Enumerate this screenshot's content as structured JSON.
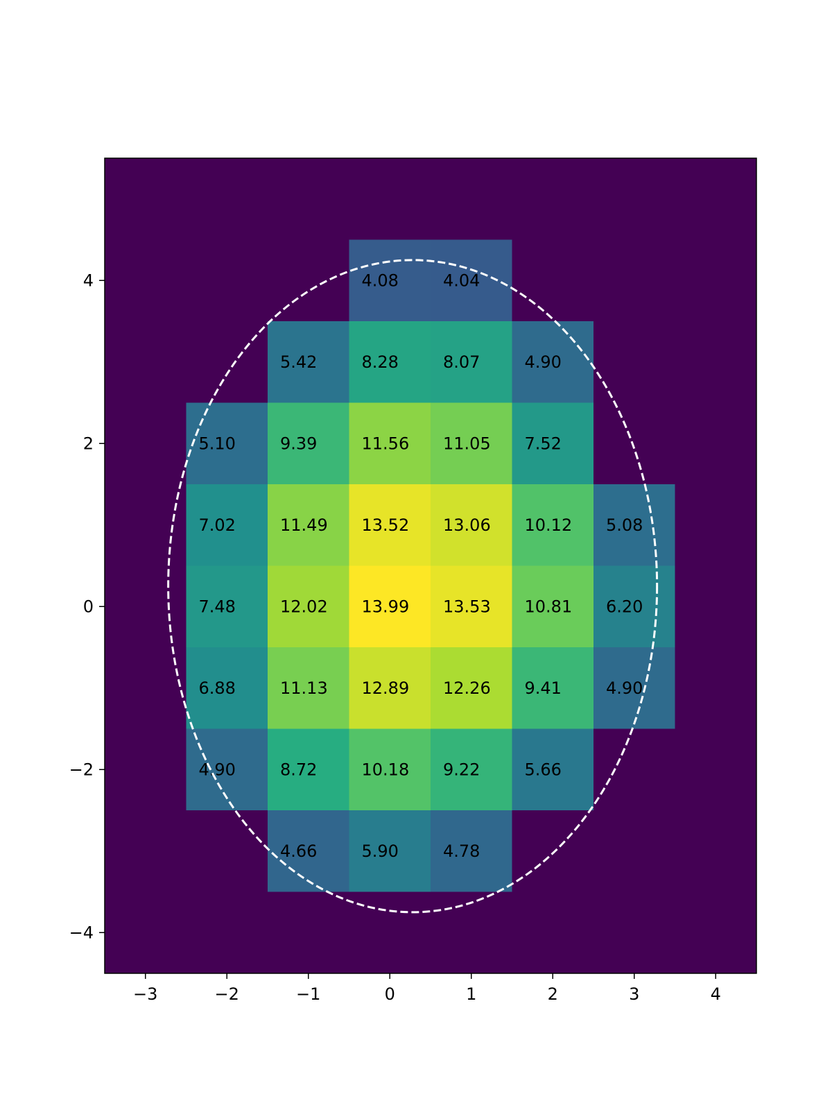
{
  "chart_data": {
    "type": "heatmap",
    "title": "",
    "xlabel": "",
    "ylabel": "",
    "xlim": [
      -3.5,
      4.5
    ],
    "ylim": [
      -4.5,
      5.5
    ],
    "x_ticks": [
      {
        "value": -3,
        "label": "−3"
      },
      {
        "value": -2,
        "label": "−2"
      },
      {
        "value": -1,
        "label": "−1"
      },
      {
        "value": 0,
        "label": "0"
      },
      {
        "value": 1,
        "label": "1"
      },
      {
        "value": 2,
        "label": "2"
      },
      {
        "value": 3,
        "label": "3"
      },
      {
        "value": 4,
        "label": "4"
      }
    ],
    "y_ticks": [
      {
        "value": -4,
        "label": "−4"
      },
      {
        "value": -2,
        "label": "−2"
      },
      {
        "value": 0,
        "label": "0"
      },
      {
        "value": 2,
        "label": "2"
      },
      {
        "value": 4,
        "label": "4"
      }
    ],
    "colormap": "viridis",
    "value_range": [
      0,
      13.99
    ],
    "background_value": 0,
    "cells": [
      {
        "x": 0,
        "y": 4,
        "value": 4.08,
        "label": "4.08"
      },
      {
        "x": 1,
        "y": 4,
        "value": 4.04,
        "label": "4.04"
      },
      {
        "x": -1,
        "y": 3,
        "value": 5.42,
        "label": "5.42"
      },
      {
        "x": 0,
        "y": 3,
        "value": 8.28,
        "label": "8.28"
      },
      {
        "x": 1,
        "y": 3,
        "value": 8.07,
        "label": "8.07"
      },
      {
        "x": 2,
        "y": 3,
        "value": 4.9,
        "label": "4.90"
      },
      {
        "x": -2,
        "y": 2,
        "value": 5.1,
        "label": "5.10"
      },
      {
        "x": -1,
        "y": 2,
        "value": 9.39,
        "label": "9.39"
      },
      {
        "x": 0,
        "y": 2,
        "value": 11.56,
        "label": "11.56"
      },
      {
        "x": 1,
        "y": 2,
        "value": 11.05,
        "label": "11.05"
      },
      {
        "x": 2,
        "y": 2,
        "value": 7.52,
        "label": "7.52"
      },
      {
        "x": -2,
        "y": 1,
        "value": 7.02,
        "label": "7.02"
      },
      {
        "x": -1,
        "y": 1,
        "value": 11.49,
        "label": "11.49"
      },
      {
        "x": 0,
        "y": 1,
        "value": 13.52,
        "label": "13.52"
      },
      {
        "x": 1,
        "y": 1,
        "value": 13.06,
        "label": "13.06"
      },
      {
        "x": 2,
        "y": 1,
        "value": 10.12,
        "label": "10.12"
      },
      {
        "x": 3,
        "y": 1,
        "value": 5.08,
        "label": "5.08"
      },
      {
        "x": -2,
        "y": 0,
        "value": 7.48,
        "label": "7.48"
      },
      {
        "x": -1,
        "y": 0,
        "value": 12.02,
        "label": "12.02"
      },
      {
        "x": 0,
        "y": 0,
        "value": 13.99,
        "label": "13.99"
      },
      {
        "x": 1,
        "y": 0,
        "value": 13.53,
        "label": "13.53"
      },
      {
        "x": 2,
        "y": 0,
        "value": 10.81,
        "label": "10.81"
      },
      {
        "x": 3,
        "y": 0,
        "value": 6.2,
        "label": "6.20"
      },
      {
        "x": -2,
        "y": -1,
        "value": 6.88,
        "label": "6.88"
      },
      {
        "x": -1,
        "y": -1,
        "value": 11.13,
        "label": "11.13"
      },
      {
        "x": 0,
        "y": -1,
        "value": 12.89,
        "label": "12.89"
      },
      {
        "x": 1,
        "y": -1,
        "value": 12.26,
        "label": "12.26"
      },
      {
        "x": 2,
        "y": -1,
        "value": 9.41,
        "label": "9.41"
      },
      {
        "x": 3,
        "y": -1,
        "value": 4.9,
        "label": "4.90"
      },
      {
        "x": -2,
        "y": -2,
        "value": 4.9,
        "label": "4.90"
      },
      {
        "x": -1,
        "y": -2,
        "value": 8.72,
        "label": "8.72"
      },
      {
        "x": 0,
        "y": -2,
        "value": 10.18,
        "label": "10.18"
      },
      {
        "x": 1,
        "y": -2,
        "value": 9.22,
        "label": "9.22"
      },
      {
        "x": 2,
        "y": -2,
        "value": 5.66,
        "label": "5.66"
      },
      {
        "x": -1,
        "y": -3,
        "value": 4.66,
        "label": "4.66"
      },
      {
        "x": 0,
        "y": -3,
        "value": 5.9,
        "label": "5.90"
      },
      {
        "x": 1,
        "y": -3,
        "value": 4.78,
        "label": "4.78"
      }
    ],
    "ellipse": {
      "center": [
        0.28,
        0.25
      ],
      "width": 6.0,
      "height": 8.0,
      "style": "dashed",
      "color": "#ffffff"
    },
    "grid": false,
    "legend": "none"
  }
}
